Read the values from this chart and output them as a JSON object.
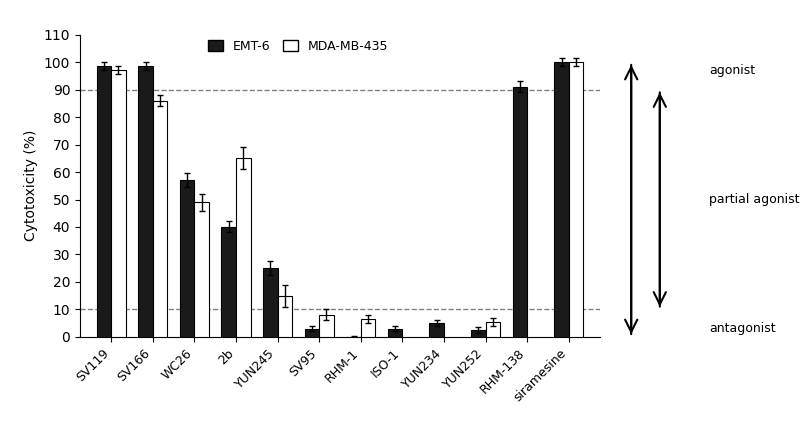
{
  "categories": [
    "SV119",
    "SV166",
    "WC26",
    "2b",
    "YUN245",
    "SV95",
    "RHM-1",
    "ISO-1",
    "YUN234",
    "YUN252",
    "RHM-138",
    "siramesine"
  ],
  "emt6_values": [
    98.5,
    98.5,
    57,
    40,
    25,
    3,
    0,
    3,
    5,
    2.5,
    91,
    100
  ],
  "emt6_errors": [
    1.5,
    1.5,
    2.5,
    2,
    2.5,
    1,
    0.5,
    1,
    1,
    1,
    2,
    1.5
  ],
  "mda_values": [
    97,
    86,
    49,
    65,
    15,
    8,
    6.5,
    null,
    null,
    5.5,
    null,
    100
  ],
  "mda_errors": [
    1.5,
    2,
    3,
    4,
    4,
    2,
    1.5,
    null,
    null,
    1.5,
    null,
    1.5
  ],
  "ylabel": "Cytotoxicity (%)",
  "ylim": [
    0,
    110
  ],
  "yticks": [
    0,
    10,
    20,
    30,
    40,
    50,
    60,
    70,
    80,
    90,
    100,
    110
  ],
  "hline_upper": 90,
  "hline_lower": 10,
  "bar_width": 0.35,
  "emt6_color": "#1a1a1a",
  "mda_color": "#ffffff",
  "legend_emt6": "EMT-6",
  "legend_mda": "MDA-MB-435",
  "agonist_label": "agonist",
  "partial_label": "partial agonist",
  "antagonist_label": "antagonist"
}
